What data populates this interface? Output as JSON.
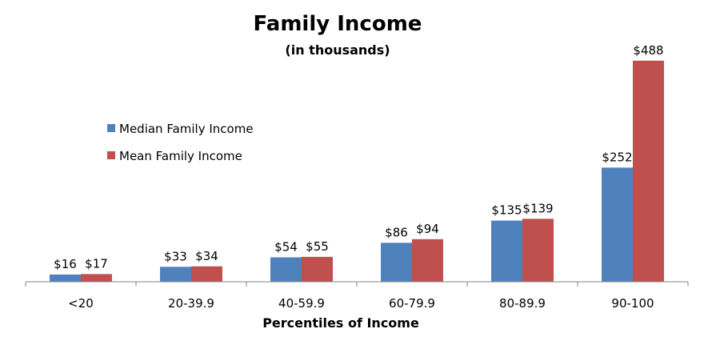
{
  "chart_data": {
    "type": "bar",
    "title": "Family Income",
    "subtitle": "(in thousands)",
    "xlabel": "Percentiles of Income",
    "ylabel": "",
    "categories": [
      "<20",
      "20-39.9",
      "40-59.9",
      "60-79.9",
      "80-89.9",
      "90-100"
    ],
    "series": [
      {
        "name": "Median Family Income",
        "color": "#4F81BD",
        "values": [
          16,
          33,
          54,
          86,
          135,
          252
        ],
        "labels": [
          "$16",
          "$33",
          "$54",
          "$86",
          "$135",
          "$252"
        ]
      },
      {
        "name": "Mean Family Income",
        "color": "#C0504D",
        "values": [
          17,
          34,
          55,
          94,
          139,
          488
        ],
        "labels": [
          "$17",
          "$34",
          "$55",
          "$94",
          "$139",
          "$488"
        ]
      }
    ],
    "ylim": [
      0,
      500
    ],
    "grid": false,
    "legend_position": "left, inside plot"
  }
}
